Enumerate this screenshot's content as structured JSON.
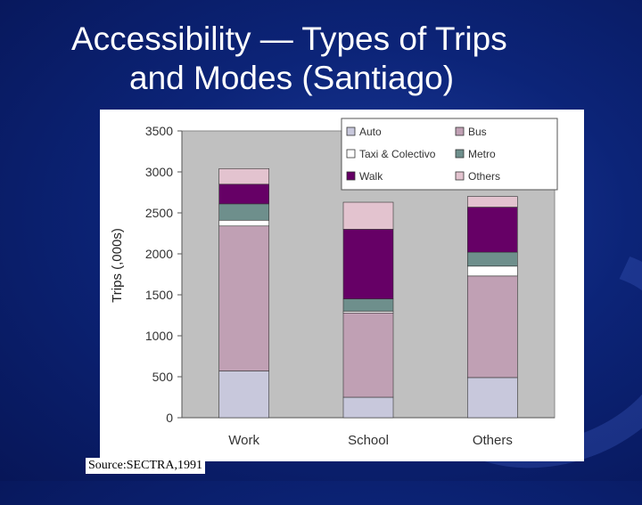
{
  "slide": {
    "title_line1": "Accessibility — Types of Trips",
    "title_line2": "and Modes (Santiago)",
    "source": "Source:SECTRA,1991"
  },
  "chart_data": {
    "type": "bar",
    "stacked": true,
    "categories": [
      "Work",
      "School",
      "Others"
    ],
    "series": [
      {
        "name": "Auto",
        "values": [
          570,
          250,
          490
        ],
        "color": "#c8c8dc"
      },
      {
        "name": "Bus",
        "values": [
          1770,
          1030,
          1240
        ],
        "color": "#c0a0b4"
      },
      {
        "name": "Taxi & Colectivo",
        "values": [
          70,
          20,
          120
        ],
        "color": "#ffffff"
      },
      {
        "name": "Metro",
        "values": [
          200,
          150,
          170
        ],
        "color": "#6e8f8c"
      },
      {
        "name": "Walk",
        "values": [
          240,
          850,
          550
        ],
        "color": "#660066"
      },
      {
        "name": "Others",
        "values": [
          190,
          330,
          130
        ],
        "color": "#e3c3cf"
      }
    ],
    "ylabel": "Trips (,000s)",
    "xlabel": "",
    "ylim": [
      0,
      3500
    ],
    "yticks": [
      0,
      500,
      1000,
      1500,
      2000,
      2500,
      3000,
      3500
    ],
    "grid": false,
    "legend_position": "top-right",
    "plot_background": "#c0c0c0"
  }
}
